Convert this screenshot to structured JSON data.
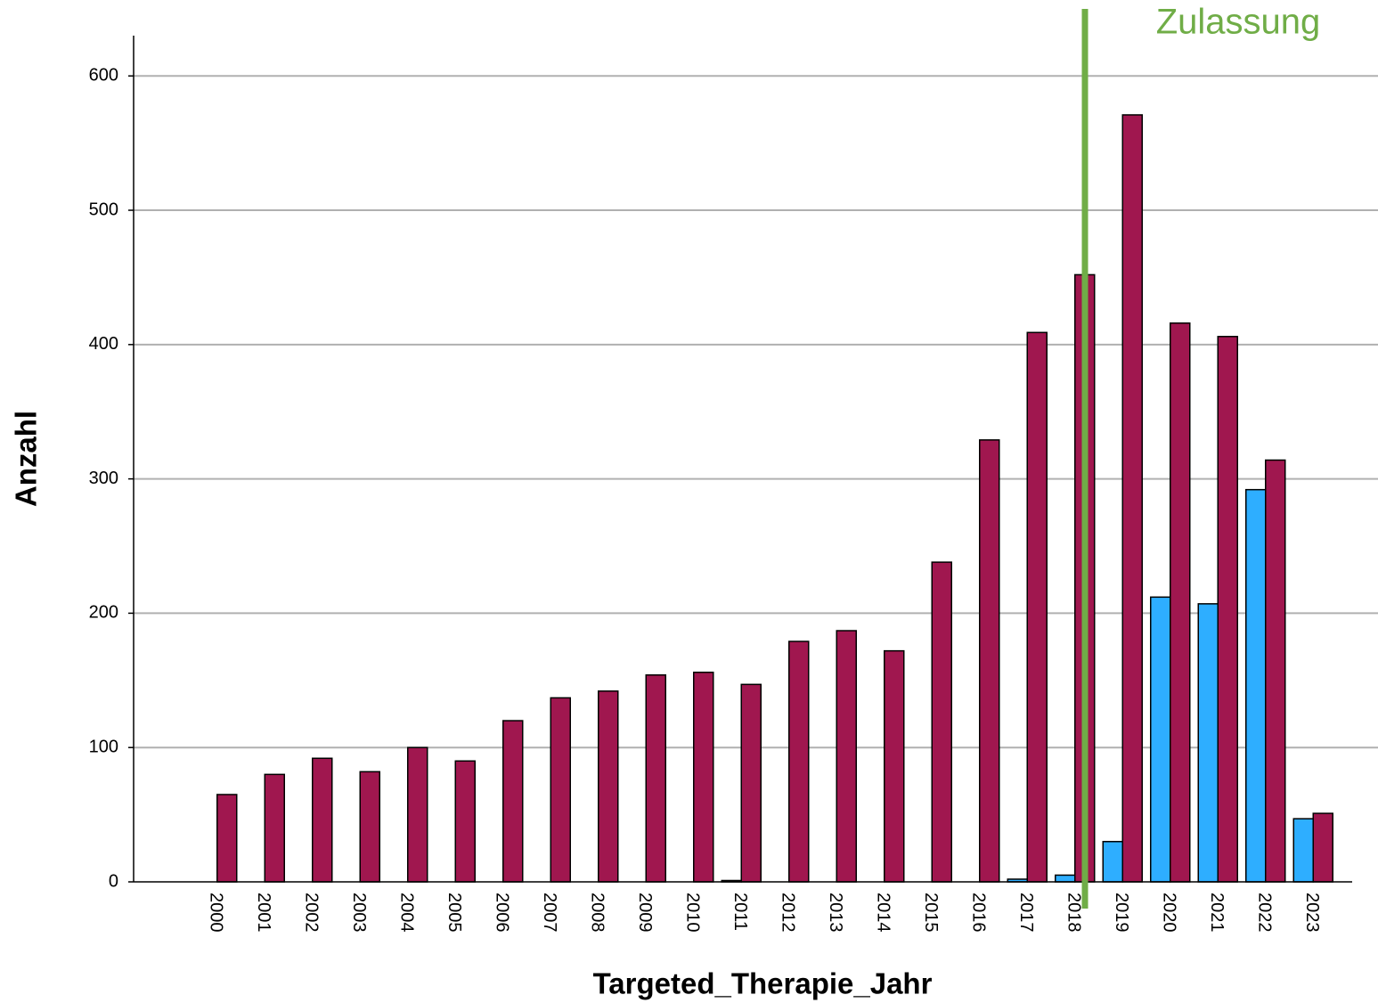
{
  "chart_data": {
    "type": "bar",
    "x_label": "Targeted_Therapie_Jahr",
    "y_label": "Anzahl",
    "annotation": "Zulassung",
    "categories": [
      "2000",
      "2001",
      "2002",
      "2003",
      "2004",
      "2005",
      "2006",
      "2007",
      "2008",
      "2009",
      "2010",
      "2011",
      "2012",
      "2013",
      "2014",
      "2015",
      "2016",
      "2017",
      "2018",
      "2019",
      "2020",
      "2021",
      "2022",
      "2023"
    ],
    "series": [
      {
        "color": "#2eaeff",
        "values": [
          0,
          0,
          0,
          0,
          0,
          0,
          0,
          0,
          0,
          0,
          0,
          1,
          0,
          0,
          0,
          0,
          0,
          2,
          5,
          30,
          212,
          207,
          292,
          47
        ]
      },
      {
        "color": "#a0174f",
        "values": [
          65,
          80,
          92,
          82,
          100,
          90,
          120,
          137,
          142,
          154,
          156,
          147,
          179,
          187,
          172,
          238,
          329,
          409,
          452,
          571,
          416,
          406,
          314,
          51
        ]
      }
    ],
    "ylim": [
      0,
      630
    ],
    "yticks": [
      0,
      100,
      200,
      300,
      400,
      500,
      600
    ],
    "grid": true
  }
}
